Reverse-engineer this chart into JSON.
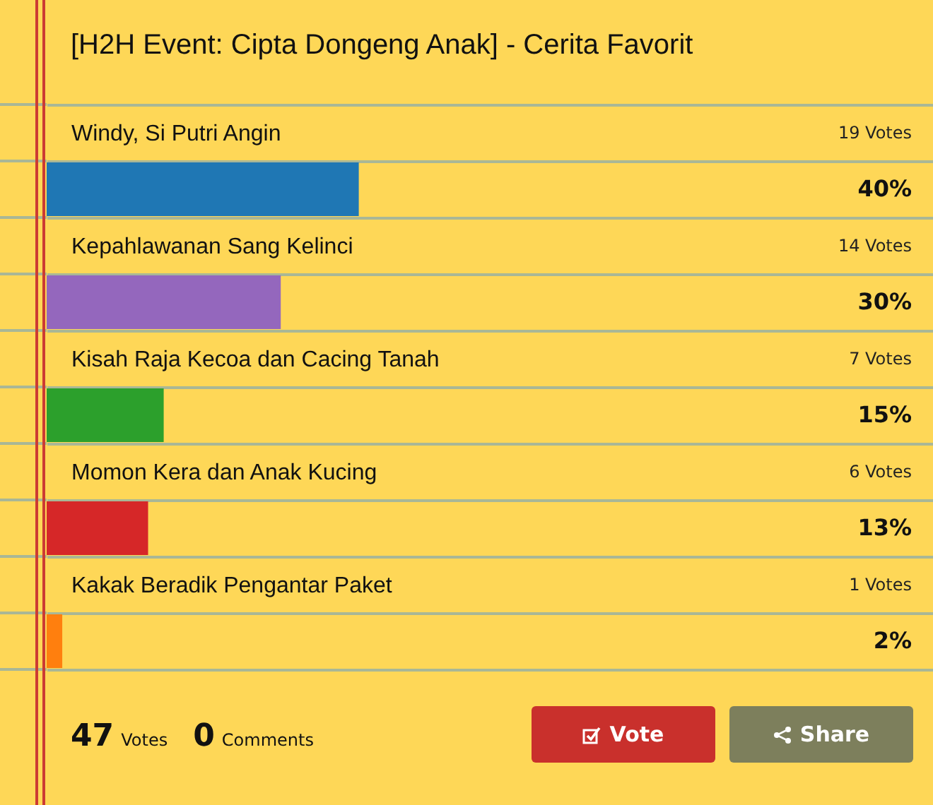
{
  "chart_data": {
    "type": "bar",
    "orientation": "horizontal",
    "title": "[H2H Event: Cipta Dongeng Anak] - Cerita Favorit",
    "categories": [
      "Windy, Si Putri Angin",
      "Kepahlawanan Sang Kelinci",
      "Kisah Raja Kecoa dan Cacing Tanah",
      "Momon Kera dan Anak Kucing",
      "Kakak Beradik Pengantar Paket"
    ],
    "values": [
      40,
      30,
      15,
      13,
      2
    ],
    "colors": [
      "#1f77b4",
      "#9467bd",
      "#2ca02c",
      "#d62728",
      "#ff7f0e"
    ],
    "value_labels": [
      "40%",
      "30%",
      "15%",
      "13%",
      "2%"
    ],
    "grid": "y",
    "tick_labels": "y",
    "annotations": [
      "19 Votes",
      "14 Votes",
      "7 Votes",
      "6 Votes",
      "1 Votes",
      "47 Votes",
      "0 Comments",
      "Vote",
      "Share"
    ]
  }
}
